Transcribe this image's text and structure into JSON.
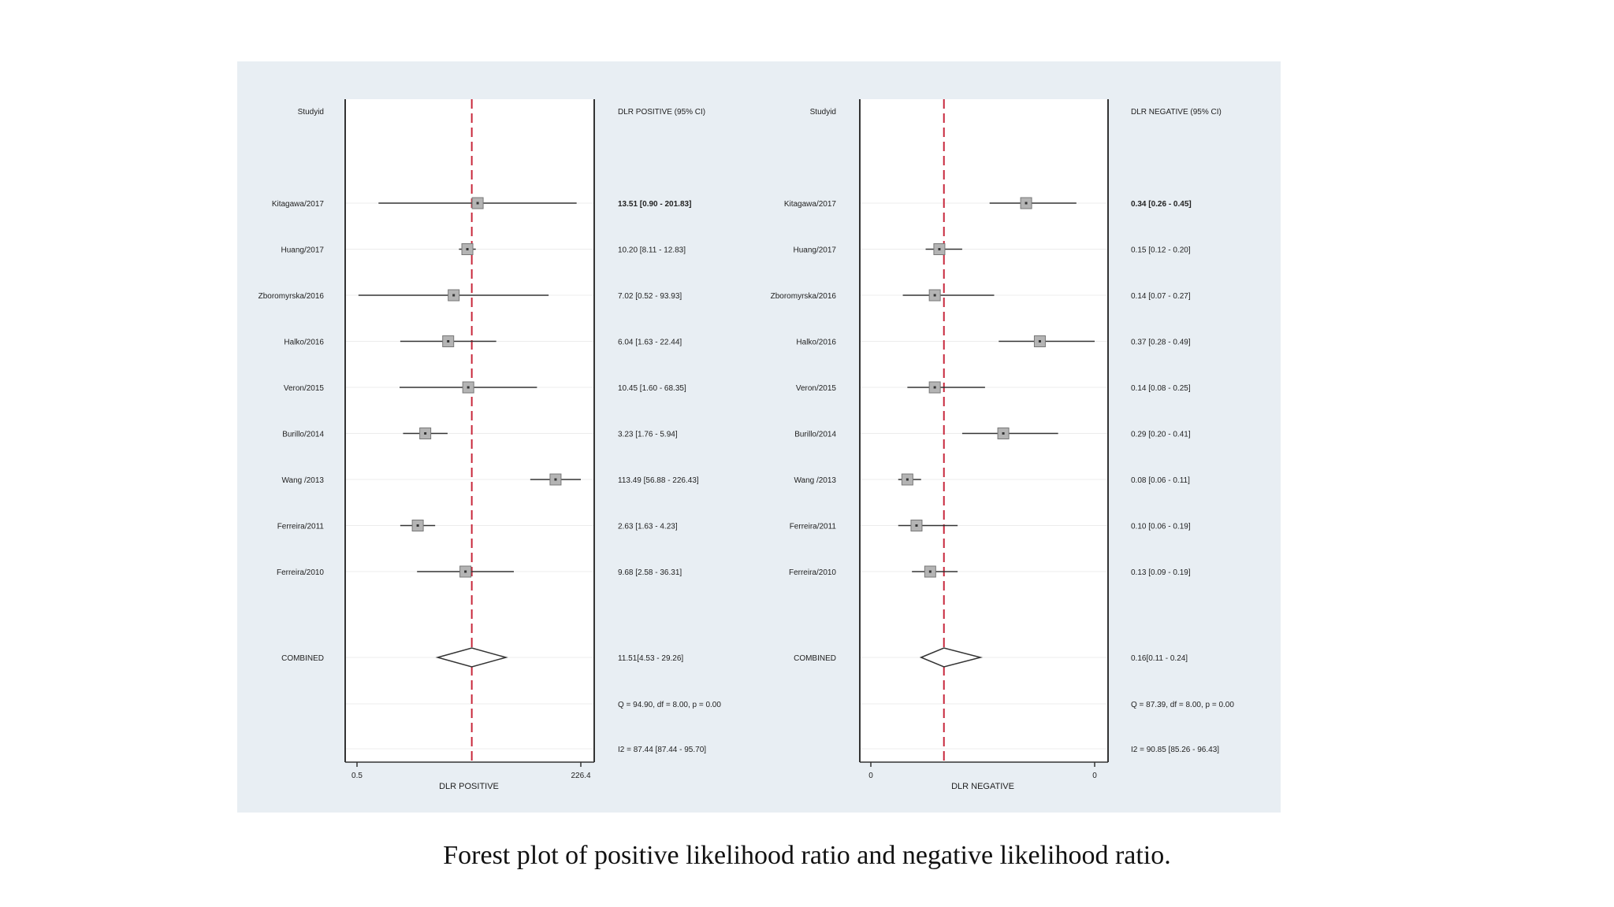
{
  "caption": "Forest plot of positive likelihood ratio and negative likelihood ratio.",
  "colors": {
    "panel_background": "#e8eef3",
    "plot_background": "#ffffff",
    "reference_line": "#c8283c",
    "marker_fill": "#b4b4b4",
    "line": "#333333"
  },
  "chart_data": [
    {
      "type": "forest",
      "study_header": "Studyid",
      "estimate_header": "DLR POSITIVE (95% CI)",
      "xlabel": "DLR POSITIVE",
      "x_scale": "log",
      "xlim": [
        0.5,
        226.4
      ],
      "xticks": [
        "0.5",
        "226.4"
      ],
      "reference_value": 11.51,
      "studies": [
        {
          "study": "Kitagawa/2017",
          "est": 13.51,
          "lo": 0.9,
          "hi": 201.83,
          "label": "13.51 [0.90 - 201.83]"
        },
        {
          "study": "Huang/2017",
          "est": 10.2,
          "lo": 8.11,
          "hi": 12.83,
          "label": "10.20 [8.11 - 12.83]"
        },
        {
          "study": "Zboromyrska/2016",
          "est": 7.02,
          "lo": 0.52,
          "hi": 93.93,
          "label": "7.02 [0.52 - 93.93]"
        },
        {
          "study": "Halko/2016",
          "est": 6.04,
          "lo": 1.63,
          "hi": 22.44,
          "label": "6.04 [1.63 - 22.44]"
        },
        {
          "study": "Veron/2015",
          "est": 10.45,
          "lo": 1.6,
          "hi": 68.35,
          "label": "10.45 [1.60 - 68.35]"
        },
        {
          "study": "Burillo/2014",
          "est": 3.23,
          "lo": 1.76,
          "hi": 5.94,
          "label": "3.23 [1.76 - 5.94]"
        },
        {
          "study": "Wang /2013",
          "est": 113.49,
          "lo": 56.88,
          "hi": 226.43,
          "label": "113.49 [56.88 - 226.43]"
        },
        {
          "study": "Ferreira/2011",
          "est": 2.63,
          "lo": 1.63,
          "hi": 4.23,
          "label": "2.63 [1.63 - 4.23]"
        },
        {
          "study": "Ferreira/2010",
          "est": 9.68,
          "lo": 2.58,
          "hi": 36.31,
          "label": "9.68 [2.58 - 36.31]"
        }
      ],
      "combined": {
        "study": "COMBINED",
        "est": 11.51,
        "lo": 4.53,
        "hi": 29.26,
        "label": "11.51[4.53 - 29.26]"
      },
      "stats": [
        "Q = 94.90, df = 8.00, p = 0.00",
        "I2 = 87.44 [87.44 - 95.70]"
      ]
    },
    {
      "type": "forest",
      "study_header": "Studyid",
      "estimate_header": "DLR NEGATIVE (95% CI)",
      "xlabel": "DLR NEGATIVE",
      "x_scale": "linear",
      "xlim": [
        0.0,
        0.49
      ],
      "xticks": [
        "0",
        "0"
      ],
      "reference_value": 0.16,
      "studies": [
        {
          "study": "Kitagawa/2017",
          "est": 0.34,
          "lo": 0.26,
          "hi": 0.45,
          "label": "0.34 [0.26 - 0.45]"
        },
        {
          "study": "Huang/2017",
          "est": 0.15,
          "lo": 0.12,
          "hi": 0.2,
          "label": "0.15 [0.12 - 0.20]"
        },
        {
          "study": "Zboromyrska/2016",
          "est": 0.14,
          "lo": 0.07,
          "hi": 0.27,
          "label": "0.14 [0.07 - 0.27]"
        },
        {
          "study": "Halko/2016",
          "est": 0.37,
          "lo": 0.28,
          "hi": 0.49,
          "label": "0.37 [0.28 - 0.49]"
        },
        {
          "study": "Veron/2015",
          "est": 0.14,
          "lo": 0.08,
          "hi": 0.25,
          "label": "0.14 [0.08 - 0.25]"
        },
        {
          "study": "Burillo/2014",
          "est": 0.29,
          "lo": 0.2,
          "hi": 0.41,
          "label": "0.29 [0.20 - 0.41]"
        },
        {
          "study": "Wang /2013",
          "est": 0.08,
          "lo": 0.06,
          "hi": 0.11,
          "label": "0.08 [0.06 - 0.11]"
        },
        {
          "study": "Ferreira/2011",
          "est": 0.1,
          "lo": 0.06,
          "hi": 0.19,
          "label": "0.10 [0.06 - 0.19]"
        },
        {
          "study": "Ferreira/2010",
          "est": 0.13,
          "lo": 0.09,
          "hi": 0.19,
          "label": "0.13 [0.09 - 0.19]"
        }
      ],
      "combined": {
        "study": "COMBINED",
        "est": 0.16,
        "lo": 0.11,
        "hi": 0.24,
        "label": "0.16[0.11 - 0.24]"
      },
      "stats": [
        "Q = 87.39, df = 8.00, p = 0.00",
        "I2 = 90.85 [85.26 - 96.43]"
      ]
    }
  ]
}
